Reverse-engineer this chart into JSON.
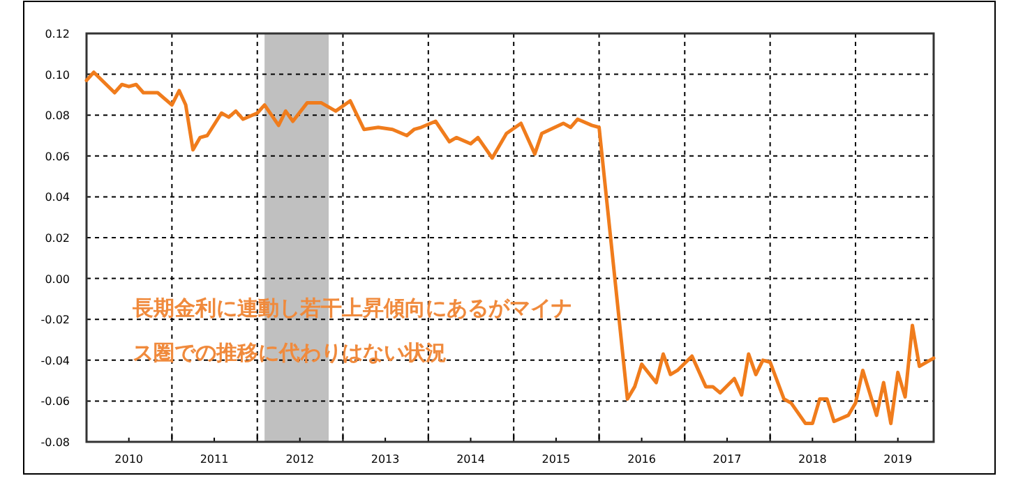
{
  "chart_data": {
    "type": "line",
    "x": [
      "2010-01",
      "2010-02",
      "2010-05",
      "2010-06",
      "2010-07",
      "2010-08",
      "2010-09",
      "2010-11",
      "2011-01",
      "2011-02",
      "2011-03",
      "2011-04",
      "2011-05",
      "2011-06",
      "2011-08",
      "2011-09",
      "2011-10",
      "2011-11",
      "2012-01",
      "2012-02",
      "2012-04",
      "2012-05",
      "2012-06",
      "2012-08",
      "2012-10",
      "2012-12",
      "2013-02",
      "2013-04",
      "2013-06",
      "2013-08",
      "2013-10",
      "2013-11",
      "2013-12",
      "2014-02",
      "2014-04",
      "2014-05",
      "2014-07",
      "2014-08",
      "2014-10",
      "2014-12",
      "2015-02",
      "2015-04",
      "2015-05",
      "2015-08",
      "2015-09",
      "2015-10",
      "2015-12",
      "2016-01",
      "2016-05",
      "2016-06",
      "2016-07",
      "2016-09",
      "2016-10",
      "2016-11",
      "2016-12",
      "2017-02",
      "2017-04",
      "2017-05",
      "2017-06",
      "2017-08",
      "2017-09",
      "2017-10",
      "2017-11",
      "2017-12",
      "2018-01",
      "2018-03",
      "2018-04",
      "2018-06",
      "2018-07",
      "2018-08",
      "2018-09",
      "2018-10",
      "2018-12",
      "2019-01",
      "2019-02",
      "2019-04",
      "2019-05",
      "2019-06",
      "2019-07",
      "2019-08",
      "2019-09",
      "2019-10",
      "2019-12"
    ],
    "series": [
      {
        "color": "#f07c1c",
        "values": [
          0.097,
          0.101,
          0.091,
          0.095,
          0.094,
          0.095,
          0.091,
          0.091,
          0.085,
          0.092,
          0.085,
          0.063,
          0.069,
          0.07,
          0.081,
          0.079,
          0.082,
          0.078,
          0.081,
          0.085,
          0.075,
          0.082,
          0.077,
          0.086,
          0.086,
          0.082,
          0.087,
          0.073,
          0.074,
          0.073,
          0.07,
          0.073,
          0.074,
          0.077,
          0.067,
          0.069,
          0.066,
          0.069,
          0.059,
          0.071,
          0.076,
          0.061,
          0.071,
          0.076,
          0.074,
          0.078,
          0.075,
          0.074,
          -0.059,
          -0.053,
          -0.042,
          -0.051,
          -0.037,
          -0.047,
          -0.045,
          -0.038,
          -0.053,
          -0.053,
          -0.056,
          -0.049,
          -0.057,
          -0.037,
          -0.047,
          -0.04,
          -0.041,
          -0.059,
          -0.061,
          -0.071,
          -0.071,
          -0.059,
          -0.059,
          -0.07,
          -0.067,
          -0.061,
          -0.045,
          -0.067,
          -0.051,
          -0.071,
          -0.046,
          -0.058,
          -0.023,
          -0.043,
          -0.039
        ]
      }
    ],
    "xlim": [
      "2010-01",
      "2019-12"
    ],
    "xticks": [
      {
        "value": "2010-07",
        "label": "2010"
      },
      {
        "value": "2011-01",
        "label": null
      },
      {
        "value": "2011-07",
        "label": "2011"
      },
      {
        "value": "2012-01",
        "label": null
      },
      {
        "value": "2012-07",
        "label": "2012"
      },
      {
        "value": "2013-01",
        "label": null
      },
      {
        "value": "2013-07",
        "label": "2013"
      },
      {
        "value": "2014-01",
        "label": null
      },
      {
        "value": "2014-07",
        "label": "2014"
      },
      {
        "value": "2015-01",
        "label": null
      },
      {
        "value": "2015-07",
        "label": "2015"
      },
      {
        "value": "2016-01",
        "label": null
      },
      {
        "value": "2016-07",
        "label": "2016"
      },
      {
        "value": "2017-01",
        "label": null
      },
      {
        "value": "2017-07",
        "label": "2017"
      },
      {
        "value": "2018-01",
        "label": null
      },
      {
        "value": "2018-07",
        "label": "2018"
      },
      {
        "value": "2019-01",
        "label": null
      },
      {
        "value": "2019-07",
        "label": "2019"
      }
    ],
    "ylim": [
      -0.08,
      0.12
    ],
    "yticks": [
      {
        "value": -0.08,
        "label": "-0.08"
      },
      {
        "value": -0.06,
        "label": "-0.06"
      },
      {
        "value": -0.04,
        "label": "-0.04"
      },
      {
        "value": -0.02,
        "label": "-0.02"
      },
      {
        "value": 0,
        "label": "0.00"
      },
      {
        "value": 0.02,
        "label": "0.02"
      },
      {
        "value": 0.04,
        "label": "0.04"
      },
      {
        "value": 0.06,
        "label": "0.06"
      },
      {
        "value": 0.08,
        "label": "0.08"
      },
      {
        "value": 0.1,
        "label": "0.10"
      },
      {
        "value": 0.12,
        "label": "0.12"
      }
    ],
    "bands": [
      {
        "axis": "x",
        "from": "2012-02",
        "to": "2012-11",
        "color": "#c0c0c0"
      }
    ],
    "grid": true,
    "line_style": "solid",
    "annotations": [
      "長期金利に連動し若干上昇傾向にあるがマイナ",
      "ス圏での推移に代わりはない状況"
    ]
  }
}
